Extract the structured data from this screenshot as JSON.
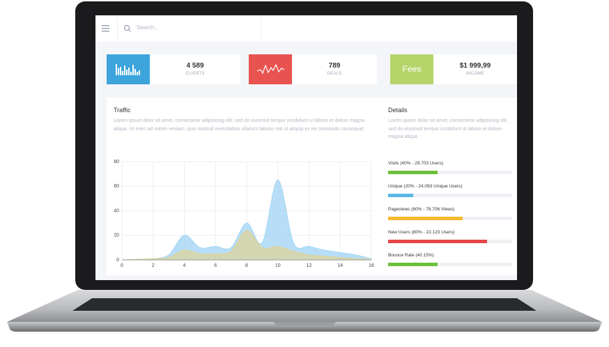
{
  "search": {
    "placeholder": "Search..."
  },
  "stats": [
    {
      "value": "4 589",
      "label": "CLIENTS",
      "color": "#3da4dc"
    },
    {
      "value": "789",
      "label": "DEALS",
      "color": "#e9534f"
    },
    {
      "value": "$1 999,99",
      "label": "INCOME",
      "color": "#b5d56a",
      "icon_text": "Fees"
    }
  ],
  "traffic": {
    "title": "Traffic",
    "text": "Lorem ipsum dolor sit amet, consectetur adipisicing elit, sed do eiusmod tempor incididunt ut labore et dolore magna aliqua. Ut enim ad minim veniam, quis nostrud exercitation ullamco laboris nisi ut aliquip ex ea commodo consequat.",
    "chart": {
      "type": "area",
      "x": [
        0,
        1,
        2,
        3,
        4,
        5,
        6,
        7,
        8,
        9,
        10,
        11,
        12,
        13,
        14,
        15,
        16
      ],
      "series": [
        {
          "color": "#9fd3f3",
          "values": [
            0,
            0.5,
            1,
            4,
            20,
            10,
            11,
            10,
            30,
            14,
            65,
            14,
            11,
            8,
            6,
            4,
            1
          ]
        },
        {
          "color": "#ddd39a",
          "values": [
            0,
            0.5,
            1,
            2,
            8,
            5,
            5,
            7,
            24,
            10,
            11,
            7,
            4,
            3,
            2,
            1,
            0.5
          ]
        }
      ],
      "xlim": [
        0,
        16
      ],
      "ylim": [
        0,
        80
      ],
      "xticks": [
        0,
        2,
        4,
        6,
        8,
        10,
        12,
        14,
        16
      ],
      "yticks": [
        0,
        20,
        40,
        60,
        80
      ],
      "grid": true
    }
  },
  "details": {
    "title": "Details",
    "text": "Lorem ipsum dolor sit amet, consectetur adipisicing elit, sed do eiusmod tempor incididunt ut labore et dolore magna aliqua.",
    "bars": [
      {
        "label": "Visits (40% - 29.703 Users)",
        "value": 40,
        "color": "#6cbf3a"
      },
      {
        "label": "Unique (20% - 24.093 Unique Users)",
        "value": 20,
        "color": "#5bb7e5"
      },
      {
        "label": "Pageviews (60% - 78.706 Views)",
        "value": 60,
        "color": "#f5b92e"
      },
      {
        "label": "New Users (80% - 22.123 Users)",
        "value": 80,
        "color": "#e64545"
      },
      {
        "label": "Bounce Rate (40.15%)",
        "value": 40.15,
        "color": "#6cbf3a"
      }
    ]
  }
}
